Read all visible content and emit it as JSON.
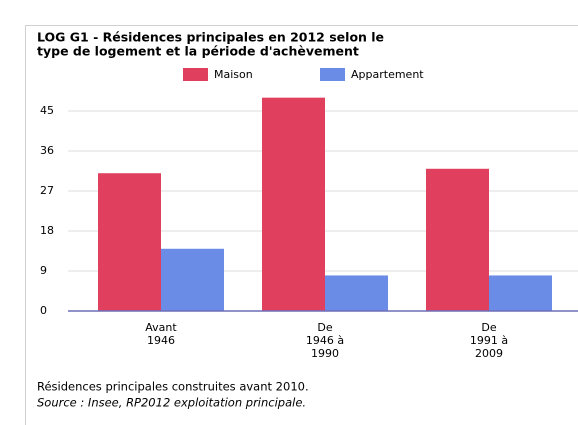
{
  "chart_data": {
    "type": "bar",
    "title": [
      "LOG G1 - Résidences principales en 2012 selon le",
      "type de logement et la période d'achèvement"
    ],
    "categories": [
      "Avant\n1946",
      "De\n1946 à\n1990",
      "De\n1991 à\n2009"
    ],
    "series": [
      {
        "name": "Maison",
        "color": "#e0405e",
        "values": [
          31,
          48,
          32
        ]
      },
      {
        "name": "Appartement",
        "color": "#6a8be6",
        "values": [
          14,
          8,
          8
        ]
      }
    ],
    "ylim": [
      0,
      49.5
    ],
    "yticks": [
      0,
      9,
      18,
      27,
      36,
      45
    ],
    "grid": true,
    "notes": [
      "Résidences principales construites avant 2010.",
      "Source : Insee, RP2012 exploitation principale."
    ]
  }
}
